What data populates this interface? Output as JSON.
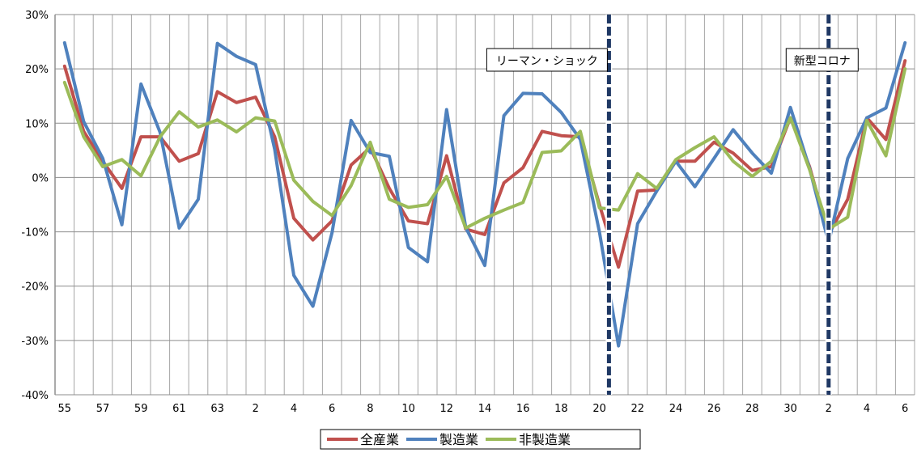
{
  "chart_data": {
    "type": "line",
    "x_tick_labels": [
      "55",
      "57",
      "59",
      "61",
      "63",
      "2",
      "4",
      "6",
      "8",
      "10",
      "12",
      "14",
      "16",
      "18",
      "20",
      "22",
      "24",
      "26",
      "28",
      "30",
      "2",
      "4",
      "6"
    ],
    "ylim": [
      -40,
      30
    ],
    "y_ticks": [
      "30%",
      "20%",
      "10%",
      "0%",
      "-10%",
      "-20%",
      "-30%",
      "-40%"
    ],
    "grid": true,
    "legend_position": "bottom",
    "annotations": [
      {
        "label": "リーマン・ショック",
        "at_index": 28.5
      },
      {
        "label": "新型コロナ",
        "at_index": 40
      }
    ],
    "series": [
      {
        "name": "全産業",
        "color": "#C0504D",
        "values": [
          20.5,
          8.5,
          3,
          -2,
          7.5,
          7.5,
          3,
          4.4,
          15.8,
          13.8,
          14.8,
          7.5,
          -7.5,
          -11.5,
          -8,
          2.3,
          5.5,
          -2,
          -8,
          -8.5,
          4,
          -9.5,
          -10.5,
          -1,
          1.8,
          8.5,
          7.7,
          7.5,
          -5,
          -16.5,
          -2.5,
          -2.3,
          3,
          3,
          6.5,
          4.5,
          1.3,
          2,
          11,
          2,
          -10.5,
          -4,
          11,
          7,
          21.5
        ]
      },
      {
        "name": "製造業",
        "color": "#4F81BD",
        "values": [
          24.8,
          10.3,
          3.5,
          -8.7,
          17.2,
          8.3,
          -9.3,
          -4,
          24.7,
          22.3,
          20.8,
          5.2,
          -18,
          -23.7,
          -10.2,
          10.5,
          4.6,
          3.9,
          -12.9,
          -15.5,
          12.5,
          -9.2,
          -16.2,
          11.4,
          15.5,
          15.4,
          12,
          7,
          -10,
          -31,
          -8.5,
          -2.5,
          3,
          -1.7,
          3.5,
          8.8,
          4.5,
          0.8,
          12.9,
          1.7,
          -12,
          3.5,
          11,
          12.8,
          24.8
        ]
      },
      {
        "name": "非製造業",
        "color": "#9BBB59",
        "values": [
          17.5,
          7.5,
          2,
          3.3,
          0.3,
          7.5,
          12.1,
          9.3,
          10.6,
          8.4,
          11,
          10.4,
          -0.5,
          -4.4,
          -7,
          -1.5,
          6.5,
          -4,
          -5.5,
          -5,
          0.2,
          -9.3,
          -7.5,
          -6,
          -4.6,
          4.6,
          4.9,
          8.5,
          -5.6,
          -6,
          0.7,
          -2,
          3.3,
          5.5,
          7.5,
          3,
          0.2,
          3,
          11,
          1.5,
          -9.5,
          -7.3,
          10.5,
          4,
          20
        ]
      }
    ]
  }
}
